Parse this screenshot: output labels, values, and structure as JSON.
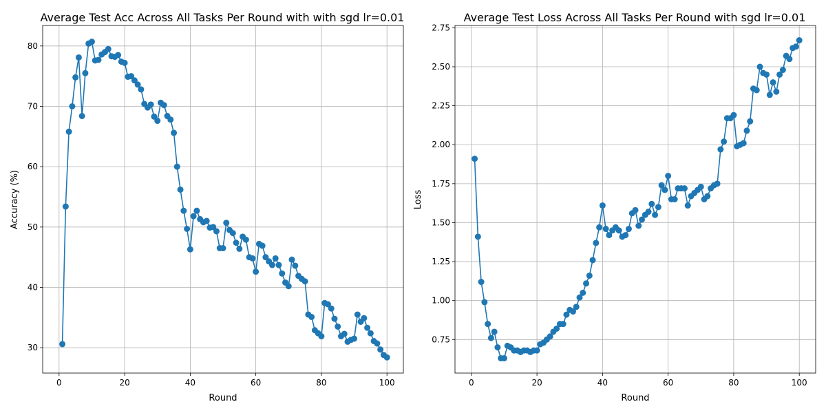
{
  "chart_data": [
    {
      "type": "line",
      "title": "Average Test Acc Across All Tasks Per Round with with sgd lr=0.01",
      "xlabel": "Round",
      "ylabel": "Accuracy (%)",
      "xlim": [
        -5,
        105
      ],
      "ylim": [
        25.8,
        83.4
      ],
      "xticks": [
        0,
        20,
        40,
        60,
        80,
        100
      ],
      "yticks": [
        30,
        40,
        50,
        60,
        70,
        80
      ],
      "grid": true,
      "color": "#1f77b4",
      "x": [
        1,
        2,
        3,
        4,
        5,
        6,
        7,
        8,
        9,
        10,
        11,
        12,
        13,
        14,
        15,
        16,
        17,
        18,
        19,
        20,
        21,
        22,
        23,
        24,
        25,
        26,
        27,
        28,
        29,
        30,
        31,
        32,
        33,
        34,
        35,
        36,
        37,
        38,
        39,
        40,
        41,
        42,
        43,
        44,
        45,
        46,
        47,
        48,
        49,
        50,
        51,
        52,
        53,
        54,
        55,
        56,
        57,
        58,
        59,
        60,
        61,
        62,
        63,
        64,
        65,
        66,
        67,
        68,
        69,
        70,
        71,
        72,
        73,
        74,
        75,
        76,
        77,
        78,
        79,
        80,
        81,
        82,
        83,
        84,
        85,
        86,
        87,
        88,
        89,
        90,
        91,
        92,
        93,
        94,
        95,
        96,
        97,
        98,
        99,
        100
      ],
      "y": [
        30.6,
        53.4,
        65.8,
        70.0,
        74.8,
        78.1,
        68.4,
        75.5,
        80.4,
        80.7,
        77.6,
        77.7,
        78.6,
        79.0,
        79.5,
        78.3,
        78.2,
        78.5,
        77.4,
        77.2,
        74.9,
        75.0,
        74.3,
        73.6,
        72.8,
        70.4,
        69.8,
        70.3,
        68.3,
        67.6,
        70.6,
        70.2,
        68.4,
        67.8,
        65.6,
        60.0,
        56.2,
        52.7,
        49.7,
        46.3,
        51.8,
        52.7,
        51.3,
        50.8,
        51.0,
        49.9,
        50.0,
        49.3,
        46.5,
        46.5,
        50.7,
        49.5,
        49.0,
        47.4,
        46.4,
        48.4,
        47.9,
        45.0,
        44.8,
        42.6,
        47.2,
        46.9,
        45.0,
        44.3,
        43.7,
        44.8,
        43.7,
        42.3,
        40.8,
        40.2,
        44.6,
        43.6,
        41.9,
        41.4,
        41.0,
        35.5,
        35.1,
        32.9,
        32.4,
        31.9,
        37.4,
        37.2,
        36.5,
        34.8,
        33.5,
        31.9,
        32.3,
        31.0,
        31.3,
        31.5,
        35.5,
        34.3,
        34.9,
        33.3,
        32.4,
        31.1,
        30.7,
        29.7,
        28.8,
        28.4
      ]
    },
    {
      "type": "line",
      "title": "Average Test Loss Across All Tasks Per Round with sgd lr=0.01",
      "xlabel": "Round",
      "ylabel": "Loss",
      "xlim": [
        -5,
        105
      ],
      "ylim": [
        0.535,
        2.765
      ],
      "xticks": [
        0,
        20,
        40,
        60,
        80,
        100
      ],
      "yticks": [
        0.75,
        1.0,
        1.25,
        1.5,
        1.75,
        2.0,
        2.25,
        2.5,
        2.75
      ],
      "ytick_labels": [
        "0.75",
        "1.00",
        "1.25",
        "1.50",
        "1.75",
        "2.00",
        "2.25",
        "2.50",
        "2.75"
      ],
      "grid": true,
      "color": "#1f77b4",
      "x": [
        1,
        2,
        3,
        4,
        5,
        6,
        7,
        8,
        9,
        10,
        11,
        12,
        13,
        14,
        15,
        16,
        17,
        18,
        19,
        20,
        21,
        22,
        23,
        24,
        25,
        26,
        27,
        28,
        29,
        30,
        31,
        32,
        33,
        34,
        35,
        36,
        37,
        38,
        39,
        40,
        41,
        42,
        43,
        44,
        45,
        46,
        47,
        48,
        49,
        50,
        51,
        52,
        53,
        54,
        55,
        56,
        57,
        58,
        59,
        60,
        61,
        62,
        63,
        64,
        65,
        66,
        67,
        68,
        69,
        70,
        71,
        72,
        73,
        74,
        75,
        76,
        77,
        78,
        79,
        80,
        81,
        82,
        83,
        84,
        85,
        86,
        87,
        88,
        89,
        90,
        91,
        92,
        93,
        94,
        95,
        96,
        97,
        98,
        99,
        100
      ],
      "y": [
        1.91,
        1.41,
        1.12,
        0.99,
        0.85,
        0.76,
        0.8,
        0.7,
        0.63,
        0.63,
        0.71,
        0.7,
        0.68,
        0.68,
        0.67,
        0.68,
        0.68,
        0.67,
        0.68,
        0.68,
        0.72,
        0.73,
        0.75,
        0.77,
        0.8,
        0.82,
        0.85,
        0.85,
        0.91,
        0.94,
        0.93,
        0.96,
        1.02,
        1.05,
        1.11,
        1.16,
        1.26,
        1.37,
        1.47,
        1.61,
        1.46,
        1.42,
        1.45,
        1.47,
        1.45,
        1.41,
        1.42,
        1.46,
        1.56,
        1.58,
        1.48,
        1.52,
        1.55,
        1.57,
        1.62,
        1.55,
        1.6,
        1.74,
        1.71,
        1.8,
        1.65,
        1.65,
        1.72,
        1.72,
        1.72,
        1.61,
        1.67,
        1.69,
        1.71,
        1.73,
        1.65,
        1.67,
        1.72,
        1.74,
        1.75,
        1.97,
        2.02,
        2.17,
        2.17,
        2.19,
        1.99,
        2.0,
        2.01,
        2.09,
        2.15,
        2.36,
        2.35,
        2.5,
        2.46,
        2.45,
        2.32,
        2.4,
        2.34,
        2.45,
        2.48,
        2.57,
        2.55,
        2.62,
        2.63,
        2.67
      ]
    }
  ]
}
